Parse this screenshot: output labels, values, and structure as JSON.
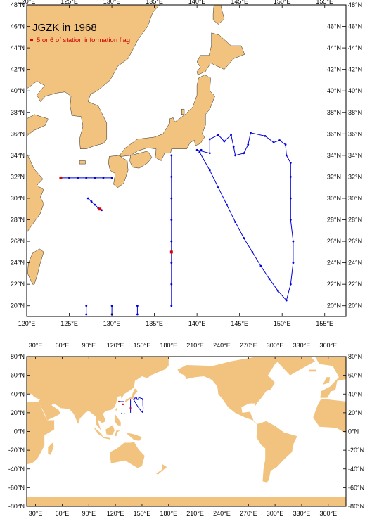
{
  "map": {
    "title": "JGZK in 1968",
    "legend_label": "5 or 6 of station information flag",
    "colors": {
      "land": "#f2c27f",
      "sea": "#ffffff",
      "track": "#0000dd",
      "flag": "#dd0000"
    },
    "regional": {
      "lon_range": [
        120,
        157.5
      ],
      "lat_range": [
        19,
        48
      ],
      "x_ticks": [
        "120°E",
        "125°E",
        "130°E",
        "135°E",
        "140°E",
        "145°E",
        "150°E",
        "155°E"
      ],
      "y_ticks": [
        "20°N",
        "22°N",
        "24°N",
        "26°N",
        "28°N",
        "30°N",
        "32°N",
        "34°N",
        "36°N",
        "38°N",
        "40°N",
        "42°N",
        "44°N",
        "46°N",
        "48°N"
      ]
    },
    "global": {
      "lon_range": [
        20,
        380
      ],
      "lat_range": [
        -80,
        80
      ],
      "x_ticks": [
        "30°E",
        "60°E",
        "90°E",
        "120°E",
        "150°E",
        "180°E",
        "210°E",
        "240°E",
        "270°E",
        "300°E",
        "330°E",
        "360°E"
      ],
      "y_ticks": [
        "-80°N",
        "-60°N",
        "-40°N",
        "-20°N",
        "0°N",
        "20°N",
        "40°N",
        "60°N",
        "80°N"
      ]
    },
    "tracks": [
      {
        "name": "east-china-sea-line",
        "points": [
          [
            124,
            31.9
          ],
          [
            125,
            31.9
          ],
          [
            126,
            31.9
          ],
          [
            127,
            31.9
          ],
          [
            128,
            31.9
          ],
          [
            129,
            31.9
          ],
          [
            130,
            31.9
          ]
        ]
      },
      {
        "name": "okinawa-line",
        "points": [
          [
            127.2,
            30
          ],
          [
            127.6,
            29.7
          ],
          [
            128,
            29.4
          ],
          [
            128.4,
            29.1
          ],
          [
            128.8,
            28.9
          ]
        ]
      },
      {
        "name": "meridian-137E-line",
        "points": [
          [
            137,
            34
          ],
          [
            137,
            32
          ],
          [
            137,
            30
          ],
          [
            137,
            28
          ],
          [
            137,
            26
          ],
          [
            137,
            24
          ],
          [
            137,
            22
          ],
          [
            137,
            20
          ]
        ]
      },
      {
        "name": "pacific-loop",
        "points": [
          [
            140,
            34.5
          ],
          [
            141.5,
            34.2
          ],
          [
            141.5,
            35.5
          ],
          [
            142.5,
            35.9
          ],
          [
            143.2,
            35.3
          ],
          [
            144,
            35.9
          ],
          [
            144.3,
            34.8
          ],
          [
            144.5,
            34
          ],
          [
            145.5,
            34.2
          ],
          [
            146,
            35
          ],
          [
            146.3,
            36.1
          ],
          [
            148,
            35.8
          ],
          [
            149,
            35.2
          ],
          [
            149.7,
            35.4
          ],
          [
            150.4,
            35
          ],
          [
            150.5,
            34
          ],
          [
            151,
            33.3
          ],
          [
            151,
            32
          ],
          [
            151,
            30
          ],
          [
            151,
            28
          ],
          [
            151.3,
            26
          ],
          [
            151.3,
            24
          ],
          [
            151,
            22
          ],
          [
            150.5,
            20.5
          ],
          [
            149.5,
            21.4
          ],
          [
            148.5,
            22.5
          ],
          [
            147.5,
            23.7
          ],
          [
            146.5,
            25
          ],
          [
            145.5,
            26.3
          ],
          [
            144.5,
            27.8
          ],
          [
            143.5,
            29.4
          ],
          [
            142.5,
            31
          ],
          [
            141.5,
            32.6
          ],
          [
            140.3,
            34.3
          ],
          [
            140.5,
            34.5
          ]
        ]
      },
      {
        "name": "south-stub-127E",
        "points": [
          [
            127,
            20
          ],
          [
            127,
            19.2
          ]
        ]
      },
      {
        "name": "south-stub-130E",
        "points": [
          [
            130,
            20
          ],
          [
            130,
            19.2
          ]
        ]
      },
      {
        "name": "south-stub-133E",
        "points": [
          [
            133,
            20
          ],
          [
            133,
            19.2
          ]
        ]
      }
    ],
    "flag_points": [
      [
        124,
        31.9
      ],
      [
        128.6,
        29
      ],
      [
        137,
        25
      ]
    ]
  }
}
